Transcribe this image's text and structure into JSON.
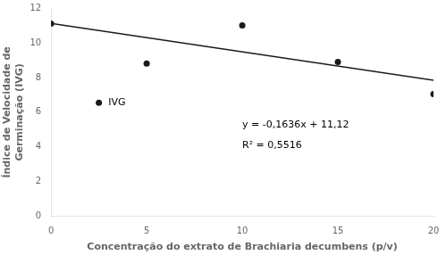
{
  "chart_data": {
    "type": "scatter",
    "xlabel": "Concentração do extrato de Brachiaria decumbens (p/v)",
    "ylabel": [
      "Índice de Velocidade de",
      "Germinação (IVG)"
    ],
    "series": [
      {
        "type": "scatter",
        "color": "#1a1a1a",
        "marker": "circle",
        "x": [
          0,
          2.5,
          5,
          10,
          15,
          20
        ],
        "values": [
          11.1,
          6.55,
          8.8,
          11.0,
          8.9,
          7.05
        ]
      },
      {
        "type": "line",
        "color": "#1a1a1a",
        "line_style": "solid",
        "x": [
          0,
          20
        ],
        "values": [
          11.12,
          7.848
        ]
      }
    ],
    "annotations": [
      "y = -0,1636x + 11,12",
      "R² = 0,5516",
      "IVG"
    ],
    "xlim": [
      0,
      20
    ],
    "xticks": [
      0,
      5,
      10,
      15,
      20
    ],
    "ylim": [
      0,
      12
    ],
    "yticks": [
      0,
      2,
      4,
      6,
      8,
      10,
      12
    ],
    "grid": false
  }
}
